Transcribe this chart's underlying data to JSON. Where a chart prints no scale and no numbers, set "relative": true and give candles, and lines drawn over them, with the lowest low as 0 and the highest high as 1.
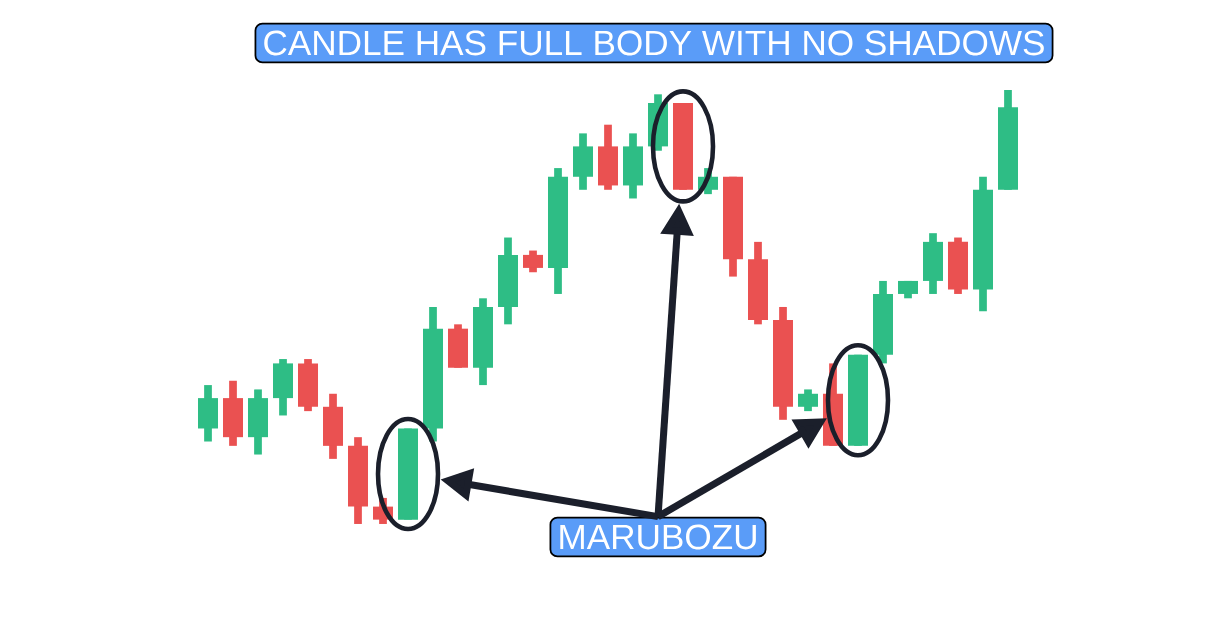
{
  "chart_data": {
    "type": "candlestick",
    "relative": true,
    "categories": [
      null,
      null,
      null,
      null,
      null,
      null,
      null,
      null,
      null,
      null,
      null,
      null,
      null,
      null,
      null,
      null,
      null,
      null,
      null,
      null,
      null,
      null,
      null,
      null,
      null,
      null,
      null,
      null,
      null,
      null,
      null,
      null,
      null
    ],
    "ohlc": [
      [
        0.22,
        0.32,
        0.19,
        0.29
      ],
      [
        0.29,
        0.33,
        0.18,
        0.2
      ],
      [
        0.2,
        0.31,
        0.16,
        0.29
      ],
      [
        0.29,
        0.38,
        0.25,
        0.37
      ],
      [
        0.37,
        0.38,
        0.26,
        0.27
      ],
      [
        0.27,
        0.3,
        0.15,
        0.18
      ],
      [
        0.18,
        0.2,
        0.0,
        0.04
      ],
      [
        0.04,
        0.06,
        0.0,
        0.01
      ],
      [
        0.01,
        0.22,
        0.01,
        0.22
      ],
      [
        0.22,
        0.5,
        0.19,
        0.45
      ],
      [
        0.45,
        0.46,
        0.36,
        0.36
      ],
      [
        0.36,
        0.52,
        0.32,
        0.5
      ],
      [
        0.5,
        0.66,
        0.46,
        0.62
      ],
      [
        0.62,
        0.63,
        0.58,
        0.59
      ],
      [
        0.59,
        0.82,
        0.53,
        0.8
      ],
      [
        0.8,
        0.9,
        0.77,
        0.87
      ],
      [
        0.87,
        0.92,
        0.77,
        0.78
      ],
      [
        0.78,
        0.9,
        0.75,
        0.87
      ],
      [
        0.87,
        0.99,
        0.86,
        0.97
      ],
      [
        0.97,
        0.97,
        0.77,
        0.77
      ],
      [
        0.77,
        0.82,
        0.76,
        0.8
      ],
      [
        0.8,
        0.8,
        0.57,
        0.61
      ],
      [
        0.61,
        0.65,
        0.46,
        0.47
      ],
      [
        0.47,
        0.5,
        0.24,
        0.27
      ],
      [
        0.27,
        0.31,
        0.26,
        0.3
      ],
      [
        0.3,
        0.37,
        0.18,
        0.18
      ],
      [
        0.18,
        0.39,
        0.18,
        0.39
      ],
      [
        0.39,
        0.56,
        0.37,
        0.53
      ],
      [
        0.53,
        0.56,
        0.52,
        0.56
      ],
      [
        0.56,
        0.67,
        0.53,
        0.65
      ],
      [
        0.65,
        0.66,
        0.53,
        0.54
      ],
      [
        0.54,
        0.8,
        0.49,
        0.77
      ],
      [
        0.77,
        1.0,
        0.77,
        0.96
      ]
    ],
    "colors": [
      "#2ebd85",
      "#ea5151",
      "#2ebd85",
      "#2ebd85",
      "#ea5151",
      "#ea5151",
      "#ea5151",
      "#ea5151",
      "#2ebd85",
      "#2ebd85",
      "#ea5151",
      "#2ebd85",
      "#2ebd85",
      "#ea5151",
      "#2ebd85",
      "#2ebd85",
      "#ea5151",
      "#2ebd85",
      "#2ebd85",
      "#ea5151",
      "#2ebd85",
      "#ea5151",
      "#ea5151",
      "#ea5151",
      "#2ebd85",
      "#ea5151",
      "#2ebd85",
      "#2ebd85",
      "#2ebd85",
      "#2ebd85",
      "#ea5151",
      "#2ebd85",
      "#2ebd85"
    ],
    "annotations": [
      "CANDLE HAS FULL BODY WITH NO SHADOWS",
      "MARUBOZU"
    ]
  }
}
